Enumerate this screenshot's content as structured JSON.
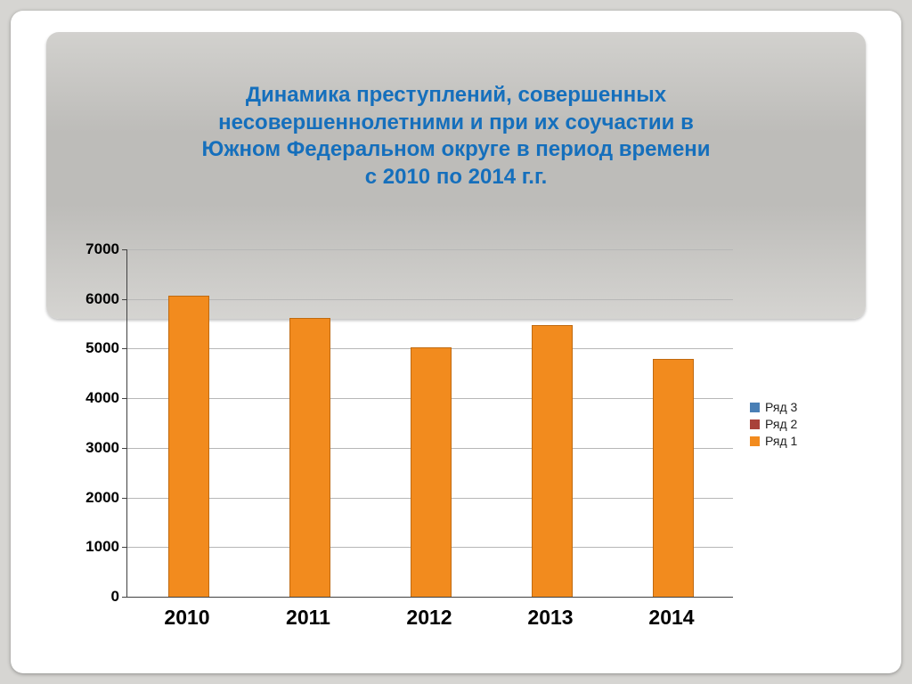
{
  "title": "Динамика преступлений, совершенных\nнесовершеннолетними и при их соучастии в\nЮжном Федеральном округе в период времени\nс 2010 по 2014 г.г.",
  "title_color": "#156fbc",
  "title_fontsize": 24,
  "title_fontweight": 700,
  "header_gradient_from": "#d2d1ce",
  "header_gradient_to": "#d5d4d1",
  "slide_bg": "#d6d5d2",
  "frame_bg": "#ffffff",
  "chart": {
    "type": "bar",
    "categories": [
      "2010",
      "2011",
      "2012",
      "2013",
      "2014"
    ],
    "values": [
      6050,
      5600,
      5000,
      5450,
      4780
    ],
    "bar_color": "#f28b1e",
    "bar_border": "#c06a10",
    "bar_width_ratio": 0.33,
    "ylim": [
      0,
      7000
    ],
    "ytick_step": 1000,
    "grid_color": "#b7b7b7",
    "axis_color": "#404040",
    "y_label_fontsize": 17,
    "x_label_fontsize": 23,
    "x_label_fontweight": 700,
    "plot_bg": "transparent"
  },
  "legend": {
    "items": [
      {
        "label": "Ряд 3",
        "color": "#4a7fb5"
      },
      {
        "label": "Ряд 2",
        "color": "#a8413a"
      },
      {
        "label": "Ряд 1",
        "color": "#f28b1e"
      }
    ],
    "fontsize": 14
  }
}
